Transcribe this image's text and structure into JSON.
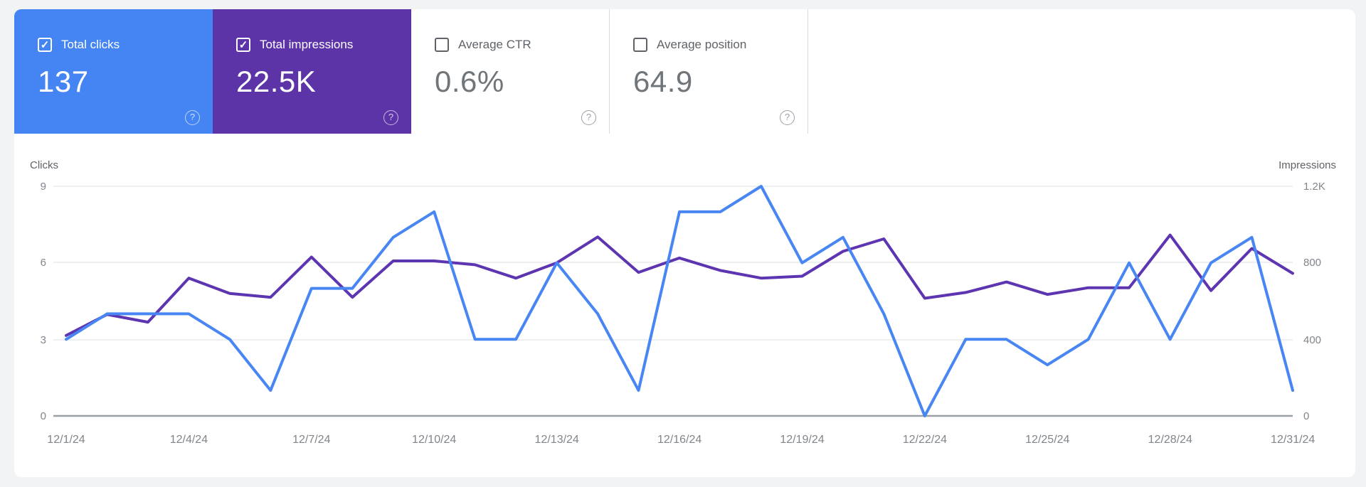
{
  "icons": {
    "help": "?",
    "check": "✓"
  },
  "cards": [
    {
      "label": "Total clicks",
      "value": "137",
      "selected": true,
      "color": "#4484f3"
    },
    {
      "label": "Total impressions",
      "value": "22.5K",
      "selected": true,
      "color": "#5c34a8"
    },
    {
      "label": "Average CTR",
      "value": "0.6%",
      "selected": false,
      "color": ""
    },
    {
      "label": "Average position",
      "value": "64.9",
      "selected": false,
      "color": ""
    }
  ],
  "chart_data": {
    "type": "line",
    "x": [
      "12/1/24",
      "12/2/24",
      "12/3/24",
      "12/4/24",
      "12/5/24",
      "12/6/24",
      "12/7/24",
      "12/8/24",
      "12/9/24",
      "12/10/24",
      "12/11/24",
      "12/12/24",
      "12/13/24",
      "12/14/24",
      "12/15/24",
      "12/16/24",
      "12/17/24",
      "12/18/24",
      "12/19/24",
      "12/20/24",
      "12/21/24",
      "12/22/24",
      "12/23/24",
      "12/24/24",
      "12/25/24",
      "12/26/24",
      "12/27/24",
      "12/28/24",
      "12/29/24",
      "12/30/24",
      "12/31/24"
    ],
    "x_tick_labels": [
      "12/1/24",
      "12/4/24",
      "12/7/24",
      "12/10/24",
      "12/13/24",
      "12/16/24",
      "12/19/24",
      "12/22/24",
      "12/25/24",
      "12/28/24",
      "12/31/24"
    ],
    "series": [
      {
        "name": "Clicks",
        "axis": "left",
        "color": "#4886f4",
        "values": [
          3,
          4,
          4,
          4,
          3,
          1,
          5,
          5,
          7,
          8,
          3,
          3,
          6,
          4,
          1,
          8,
          8,
          9,
          6,
          7,
          4,
          0,
          3,
          3,
          2,
          3,
          6,
          3,
          6,
          7,
          1
        ]
      },
      {
        "name": "Impressions",
        "axis": "right",
        "color": "#5e35b1",
        "values": [
          420,
          530,
          490,
          720,
          640,
          620,
          830,
          620,
          810,
          810,
          790,
          720,
          800,
          935,
          750,
          825,
          760,
          720,
          730,
          860,
          925,
          615,
          645,
          700,
          635,
          670,
          670,
          945,
          655,
          875,
          745
        ]
      }
    ],
    "left_axis": {
      "label": "Clicks",
      "ticks": [
        "9",
        "6",
        "3",
        "0"
      ],
      "max": 9,
      "min": 0
    },
    "right_axis": {
      "label": "Impressions",
      "ticks": [
        "1.2K",
        "800",
        "400",
        "0"
      ],
      "max": 1200,
      "min": 0
    },
    "grid": "horizontal",
    "legend_position": "none"
  }
}
